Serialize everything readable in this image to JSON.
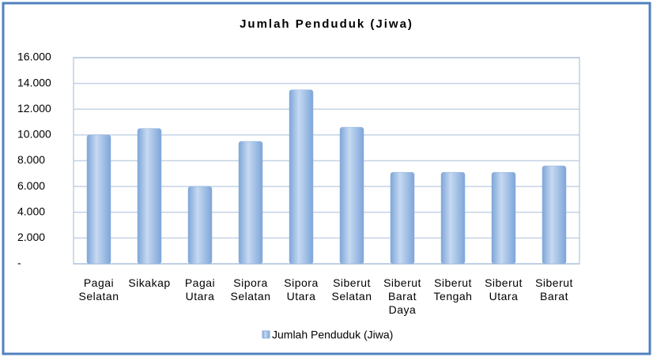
{
  "chart_data": {
    "type": "bar",
    "title": "Jumlah Penduduk (Jiwa)",
    "categories": [
      "Pagai Selatan",
      "Sikakap",
      "Pagai Utara",
      "Sipora Selatan",
      "Sipora Utara",
      "Siberut Selatan",
      "Siberut Barat Daya",
      "Siberut Tengah",
      "Siberut Utara",
      "Siberut Barat"
    ],
    "series": [
      {
        "name": "Jumlah Penduduk (Jiwa)",
        "color": "#95b8e3",
        "values": [
          10000,
          10500,
          6000,
          9500,
          13500,
          10600,
          7100,
          7100,
          7100,
          7600
        ]
      }
    ],
    "ylim": [
      0,
      16000
    ],
    "yticks": [
      {
        "value": 0,
        "label": "-"
      },
      {
        "value": 2000,
        "label": "2.000"
      },
      {
        "value": 4000,
        "label": "4.000"
      },
      {
        "value": 6000,
        "label": "6.000"
      },
      {
        "value": 8000,
        "label": "8.000"
      },
      {
        "value": 10000,
        "label": "10.000"
      },
      {
        "value": 12000,
        "label": "12.000"
      },
      {
        "value": 14000,
        "label": "14.000"
      },
      {
        "value": 16000,
        "label": "16.000"
      }
    ],
    "grid": true,
    "legend": "bottom"
  }
}
